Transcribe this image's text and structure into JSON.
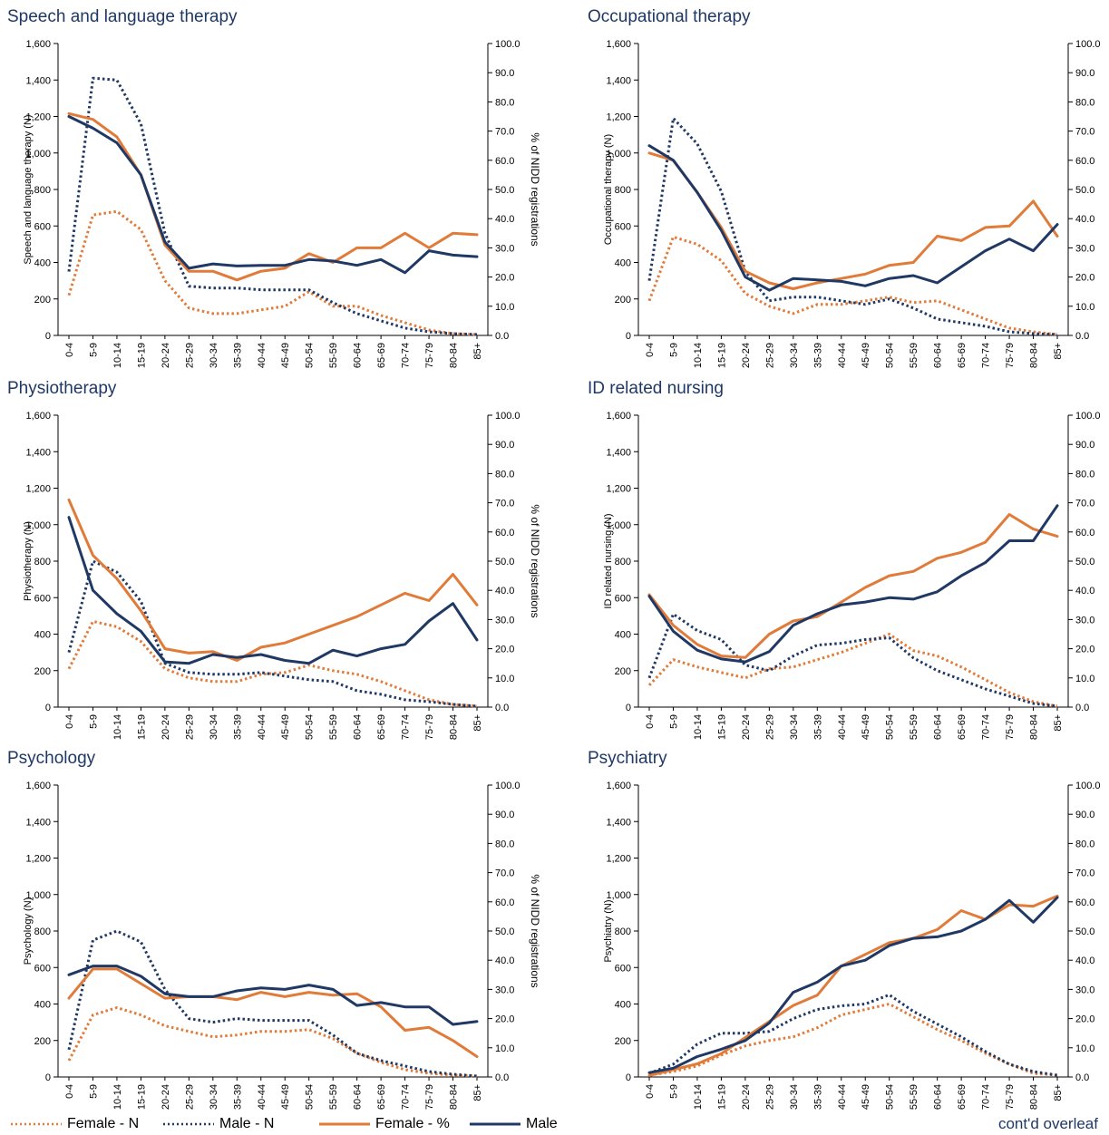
{
  "colors": {
    "female": "#e07b39",
    "male": "#1f3864",
    "axis": "#000000",
    "title": "#1f3864"
  },
  "categories": [
    "0-4",
    "5-9",
    "10-14",
    "15-19",
    "20-24",
    "25-29",
    "30-34",
    "35-39",
    "40-44",
    "45-49",
    "50-54",
    "55-59",
    "60-64",
    "65-69",
    "70-74",
    "75-79",
    "80-84",
    "85+"
  ],
  "y_left_ticks": [
    "0",
    "200",
    "400",
    "600",
    "800",
    "1,000",
    "1,200",
    "1,400",
    "1,600"
  ],
  "y_right_ticks": [
    "0.0",
    "10.0",
    "20.0",
    "30.0",
    "40.0",
    "50.0",
    "60.0",
    "70.0",
    "80.0",
    "90.0",
    "100.0"
  ],
  "y_right_label": "% of NIDD registrations",
  "legend": [
    {
      "label": "Female - N",
      "style": "dotted",
      "color": "#e07b39"
    },
    {
      "label": "Male - N",
      "style": "dotted",
      "color": "#1f3864"
    },
    {
      "label": "Female - %",
      "style": "solid",
      "color": "#e07b39"
    },
    {
      "label": "Male",
      "style": "solid",
      "color": "#1f3864"
    }
  ],
  "footer_note": "cont'd overleaf",
  "chart_data": [
    {
      "type": "line",
      "title": "Speech and language therapy",
      "ylabel": "Speech and language therapy (N)",
      "ylabel2": "% of NIDD registrations",
      "ylim": [
        0,
        1600
      ],
      "ylim2": [
        0,
        100
      ],
      "series": [
        {
          "name": "Female - N",
          "axis": "left",
          "values": [
            220,
            660,
            680,
            580,
            300,
            150,
            120,
            120,
            140,
            160,
            240,
            160,
            160,
            110,
            70,
            30,
            10,
            5
          ]
        },
        {
          "name": "Male - N",
          "axis": "left",
          "values": [
            350,
            1410,
            1400,
            1160,
            560,
            270,
            260,
            260,
            250,
            250,
            250,
            180,
            120,
            80,
            40,
            20,
            10,
            5
          ]
        },
        {
          "name": "Female - %",
          "axis": "right",
          "values": [
            76,
            74,
            68,
            55,
            31,
            22,
            22,
            19,
            22,
            23,
            28,
            25,
            30,
            30,
            35,
            30,
            35,
            34.5
          ]
        },
        {
          "name": "Male",
          "axis": "right",
          "values": [
            75,
            71,
            66,
            55,
            32,
            23,
            24.5,
            23.8,
            24,
            24,
            26,
            25.5,
            24,
            26,
            21.5,
            29,
            27.5,
            27
          ]
        }
      ]
    },
    {
      "type": "line",
      "title": "Occupational therapy",
      "ylabel": "Occupational therapy (N)",
      "ylabel2": "% of NIDD registrations",
      "ylim": [
        0,
        1600
      ],
      "ylim2": [
        0,
        100
      ],
      "series": [
        {
          "name": "Female - N",
          "axis": "left",
          "values": [
            190,
            540,
            500,
            410,
            230,
            160,
            120,
            170,
            170,
            190,
            210,
            180,
            190,
            140,
            90,
            40,
            20,
            5
          ]
        },
        {
          "name": "Male - N",
          "axis": "left",
          "values": [
            300,
            1190,
            1050,
            790,
            350,
            190,
            210,
            210,
            190,
            170,
            200,
            150,
            90,
            70,
            50,
            20,
            10,
            5
          ]
        },
        {
          "name": "Female - %",
          "axis": "right",
          "values": [
            62.5,
            60,
            49,
            37,
            22,
            18,
            16,
            18,
            19.5,
            21,
            24,
            25,
            34,
            32.5,
            37,
            37.5,
            46,
            34
          ]
        },
        {
          "name": "Male",
          "axis": "right",
          "values": [
            65,
            60,
            49,
            36,
            20,
            15.5,
            19.5,
            19,
            18.5,
            17,
            19.5,
            20.5,
            18,
            23.5,
            29,
            33,
            29,
            38
          ]
        }
      ]
    },
    {
      "type": "line",
      "title": "Physiotherapy",
      "ylabel": "Physiotherapy (N)",
      "ylabel2": "% of NIDD registrations",
      "ylim": [
        0,
        1600
      ],
      "ylim2": [
        0,
        100
      ],
      "series": [
        {
          "name": "Female - N",
          "axis": "left",
          "values": [
            210,
            470,
            440,
            360,
            210,
            160,
            140,
            140,
            180,
            190,
            230,
            200,
            180,
            140,
            90,
            40,
            15,
            5
          ]
        },
        {
          "name": "Male - N",
          "axis": "left",
          "values": [
            300,
            800,
            740,
            580,
            240,
            190,
            180,
            180,
            190,
            170,
            150,
            140,
            90,
            70,
            40,
            30,
            15,
            5
          ]
        },
        {
          "name": "Female - %",
          "axis": "right",
          "values": [
            71,
            52,
            44,
            33,
            20,
            18.5,
            19,
            16,
            20.5,
            22,
            25,
            28,
            31,
            35,
            39,
            36.5,
            45.5,
            35
          ]
        },
        {
          "name": "Male",
          "axis": "right",
          "values": [
            65,
            40,
            32,
            26,
            15.5,
            15,
            18,
            17,
            18,
            16,
            15,
            19.5,
            17.5,
            20,
            21.5,
            29.5,
            35.5,
            23
          ]
        }
      ]
    },
    {
      "type": "line",
      "title": "ID related nursing",
      "ylabel": "ID related nursing (N)",
      "ylabel2": "% of NIDD registrations",
      "ylim": [
        0,
        1600
      ],
      "ylim2": [
        0,
        100
      ],
      "series": [
        {
          "name": "Female - N",
          "axis": "left",
          "values": [
            120,
            260,
            220,
            190,
            160,
            210,
            220,
            260,
            300,
            350,
            400,
            310,
            280,
            220,
            150,
            80,
            30,
            5
          ]
        },
        {
          "name": "Male - N",
          "axis": "left",
          "values": [
            160,
            510,
            420,
            370,
            230,
            200,
            280,
            340,
            350,
            370,
            380,
            270,
            200,
            150,
            100,
            60,
            20,
            5
          ]
        },
        {
          "name": "Female - %",
          "axis": "right",
          "values": [
            38.5,
            28,
            21.5,
            17.5,
            17,
            25,
            29.5,
            31,
            36,
            41,
            45,
            46.5,
            51,
            53,
            56.5,
            66,
            61,
            58.5
          ]
        },
        {
          "name": "Male",
          "axis": "right",
          "values": [
            38,
            26,
            19.5,
            16.5,
            15.5,
            19,
            28,
            32,
            35,
            36,
            37.5,
            37,
            39.5,
            45,
            49.5,
            57,
            57,
            69
          ]
        }
      ]
    },
    {
      "type": "line",
      "title": "Psychology",
      "ylabel": "Psychology (N)",
      "ylabel2": "% of NIDD registrations",
      "ylim": [
        0,
        1600
      ],
      "ylim2": [
        0,
        100
      ],
      "series": [
        {
          "name": "Female - N",
          "axis": "left",
          "values": [
            90,
            340,
            380,
            340,
            280,
            250,
            220,
            230,
            250,
            250,
            260,
            210,
            130,
            80,
            40,
            20,
            10,
            5
          ]
        },
        {
          "name": "Male - N",
          "axis": "left",
          "values": [
            150,
            750,
            800,
            740,
            480,
            320,
            300,
            320,
            310,
            310,
            310,
            230,
            130,
            90,
            60,
            30,
            15,
            5
          ]
        },
        {
          "name": "Female - %",
          "axis": "right",
          "values": [
            27,
            37,
            37,
            32,
            27,
            27.5,
            27.5,
            26.5,
            29,
            27.5,
            29,
            28,
            28.5,
            24,
            16,
            17,
            12.5,
            7
          ]
        },
        {
          "name": "Male",
          "axis": "right",
          "values": [
            35,
            38,
            38,
            34.5,
            28.5,
            27.5,
            27.5,
            29.5,
            30.5,
            30,
            31.5,
            30,
            24.5,
            25.5,
            24,
            24,
            18,
            19
          ]
        }
      ]
    },
    {
      "type": "line",
      "title": "Psychiatry",
      "ylabel": "Psychiatry (N)",
      "ylabel2": "% of NIDD registrations",
      "ylim": [
        0,
        1600
      ],
      "ylim2": [
        0,
        100
      ],
      "series": [
        {
          "name": "Female - N",
          "axis": "left",
          "values": [
            10,
            30,
            60,
            120,
            170,
            200,
            220,
            270,
            340,
            370,
            400,
            330,
            260,
            200,
            130,
            70,
            20,
            10
          ]
        },
        {
          "name": "Male - N",
          "axis": "left",
          "values": [
            20,
            70,
            180,
            240,
            240,
            250,
            320,
            370,
            390,
            400,
            450,
            360,
            290,
            220,
            140,
            70,
            30,
            10
          ]
        },
        {
          "name": "Female - %",
          "axis": "right",
          "values": [
            0.5,
            2.5,
            4.5,
            8,
            13.5,
            19,
            24.5,
            28,
            38,
            42,
            46,
            47.5,
            50.5,
            57,
            54,
            59,
            58.5,
            62
          ]
        },
        {
          "name": "Male",
          "axis": "right",
          "values": [
            1.5,
            3,
            7,
            9.5,
            12.5,
            18.5,
            29,
            32.5,
            38,
            40,
            45,
            47.5,
            48,
            50,
            54,
            60.5,
            53,
            61.5
          ]
        }
      ]
    }
  ]
}
